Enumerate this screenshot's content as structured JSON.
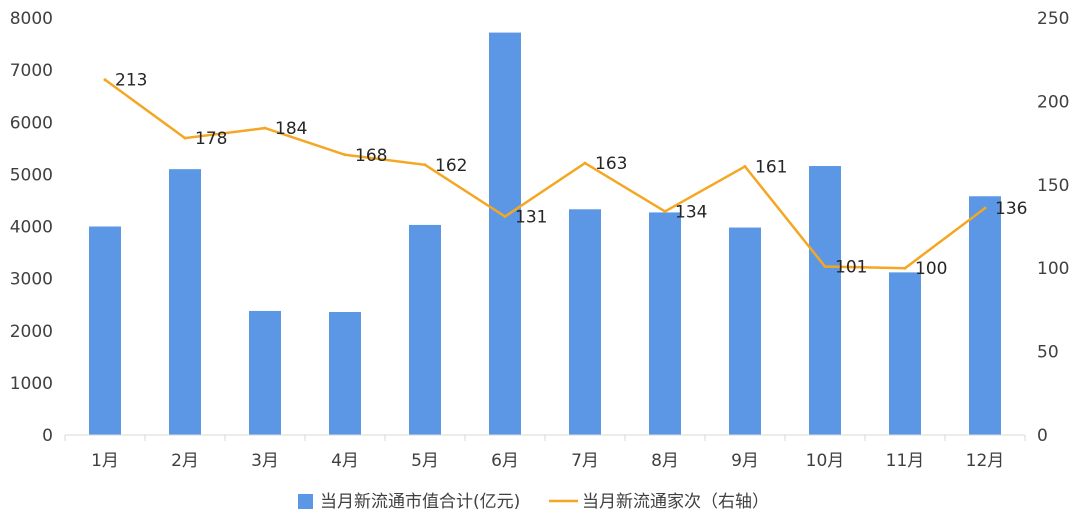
{
  "chart_data": {
    "type": "bar+line",
    "categories": [
      "1月",
      "2月",
      "3月",
      "4月",
      "5月",
      "6月",
      "7月",
      "8月",
      "9月",
      "10月",
      "11月",
      "12月"
    ],
    "series": [
      {
        "name": "当月新流通市值合计(亿元)",
        "type": "bar",
        "axis": "left",
        "color": "#5B97E5",
        "values": [
          4000,
          5100,
          2380,
          2360,
          4030,
          7720,
          4330,
          4270,
          3980,
          5160,
          3120,
          4580
        ]
      },
      {
        "name": "当月新流通家次（右轴）",
        "type": "line",
        "axis": "right",
        "color": "#F5A623",
        "values": [
          213,
          178,
          184,
          168,
          162,
          131,
          163,
          134,
          161,
          101,
          100,
          136
        ],
        "data_labels": [
          "213",
          "178",
          "184",
          "168",
          "162",
          "131",
          "163",
          "134",
          "161",
          "101",
          "100",
          "136"
        ]
      }
    ],
    "y_left": {
      "min": 0,
      "max": 8000,
      "ticks": [
        "0",
        "1000",
        "2000",
        "3000",
        "4000",
        "5000",
        "6000",
        "7000",
        "8000"
      ]
    },
    "y_right": {
      "min": 0,
      "max": 250,
      "ticks": [
        "0",
        "50",
        "100",
        "150",
        "200",
        "250"
      ]
    },
    "grid": false,
    "legend_position": "bottom"
  }
}
